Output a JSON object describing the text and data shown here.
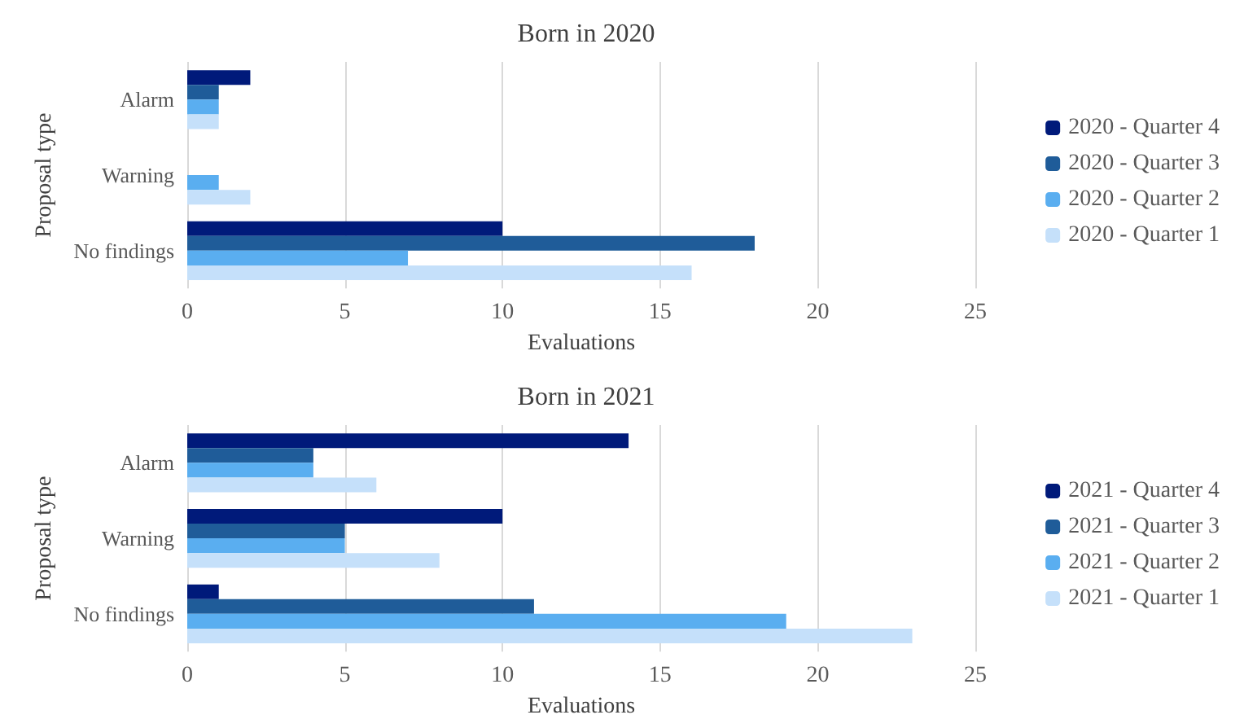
{
  "chart_data": [
    {
      "type": "bar",
      "orientation": "horizontal",
      "title": "Born in 2020",
      "xlabel": "Evaluations",
      "ylabel": "Proposal type",
      "categories": [
        "Alarm",
        "Warning",
        "No findings"
      ],
      "xlim": [
        0,
        25
      ],
      "xticks": [
        0,
        5,
        10,
        15,
        20,
        25
      ],
      "grid": "x",
      "legend": "right",
      "series": [
        {
          "name": "2020 - Quarter 4",
          "color": "#001a7a",
          "values": [
            2,
            0,
            10
          ]
        },
        {
          "name": "2020 - Quarter 3",
          "color": "#1f5c99",
          "values": [
            1,
            0,
            18
          ]
        },
        {
          "name": "2020 - Quarter 2",
          "color": "#5aaef0",
          "values": [
            1,
            1,
            7
          ]
        },
        {
          "name": "2020 - Quarter 1",
          "color": "#c5e0fa",
          "values": [
            1,
            2,
            16
          ]
        }
      ]
    },
    {
      "type": "bar",
      "orientation": "horizontal",
      "title": "Born in 2021",
      "xlabel": "Evaluations",
      "ylabel": "Proposal type",
      "categories": [
        "Alarm",
        "Warning",
        "No findings"
      ],
      "xlim": [
        0,
        25
      ],
      "xticks": [
        0,
        5,
        10,
        15,
        20,
        25
      ],
      "grid": "x",
      "legend": "right",
      "series": [
        {
          "name": "2021 - Quarter 4",
          "color": "#001a7a",
          "values": [
            14,
            10,
            1
          ]
        },
        {
          "name": "2021 - Quarter 3",
          "color": "#1f5c99",
          "values": [
            4,
            5,
            11
          ]
        },
        {
          "name": "2021 - Quarter 2",
          "color": "#5aaef0",
          "values": [
            4,
            5,
            19
          ]
        },
        {
          "name": "2021 - Quarter 1",
          "color": "#c5e0fa",
          "values": [
            6,
            8,
            23
          ]
        }
      ]
    }
  ]
}
